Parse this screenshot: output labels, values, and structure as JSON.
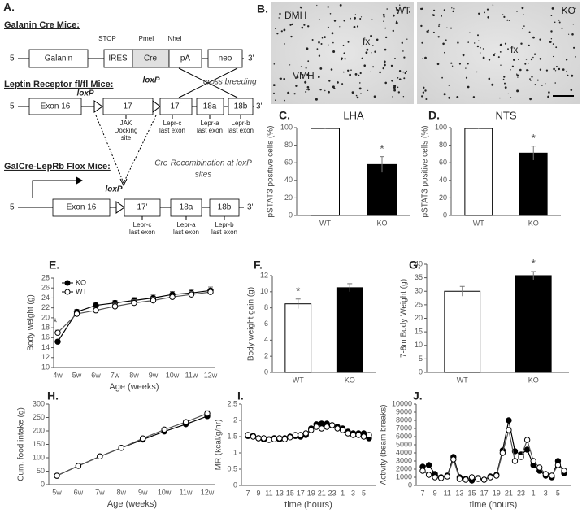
{
  "diagram": {
    "label": "A.",
    "galanin_cre": {
      "title": "Galanin Cre Mice:",
      "markers": [
        "STOP",
        "PmeI",
        "NheI"
      ],
      "ends": [
        "5'",
        "3'"
      ],
      "segments": [
        "Galanin",
        "IRES",
        "Cre",
        "pA",
        "neo"
      ]
    },
    "cross_breeding": "cross breeding",
    "lepr_flox": {
      "title": "Leptin Receptor fl/fl Mice:",
      "loxp": [
        "loxP",
        "loxP"
      ],
      "ends": [
        "5'",
        "3'"
      ],
      "exons": [
        "Exon 16",
        "17",
        "17'",
        "18a",
        "18b"
      ],
      "notes": [
        [
          "JAK",
          "Docking",
          "site"
        ],
        [
          "Lepr-c",
          "last exon"
        ],
        [
          "Lepr-a",
          "last exon"
        ],
        [
          "Lepr-b",
          "last exon"
        ]
      ]
    },
    "recombination": [
      "Cre-Recombination at loxP",
      "sites"
    ],
    "galcre_leprb": {
      "title": "GalCre-LepRb Flox Mice:",
      "loxp": "loxP",
      "ends": [
        "5'",
        "3'"
      ],
      "exons": [
        "Exon 16",
        "17'",
        "18a",
        "18b"
      ],
      "notes": [
        [
          "Lepr-c",
          "last exon"
        ],
        [
          "Lepr-a",
          "last exon"
        ],
        [
          "Lepr-b",
          "last exon"
        ]
      ]
    }
  },
  "micrographs": {
    "label": "B.",
    "panels": [
      {
        "genotype": "WT",
        "regions": [
          "DMH",
          "fx",
          "VMH"
        ]
      },
      {
        "genotype": "KO",
        "regions": [
          "fx"
        ]
      }
    ]
  },
  "chart_data": [
    {
      "type": "bar",
      "panel": "C.",
      "title": "LHA",
      "ylabel": "pSTAT3 positive cells (%)",
      "categories": [
        "WT",
        "KO"
      ],
      "values": [
        99,
        58
      ],
      "errors": [
        0.5,
        9
      ],
      "colors": [
        "#ffffff",
        "#000000"
      ],
      "ylim": [
        0,
        100
      ],
      "yticks": [
        0,
        20,
        40,
        60,
        80,
        100
      ],
      "annotations": [
        {
          "text": "*",
          "category": "KO"
        }
      ]
    },
    {
      "type": "bar",
      "panel": "D.",
      "title": "NTS",
      "ylabel": "pSTAT3 positive cells (%)",
      "categories": [
        "WT",
        "KO"
      ],
      "values": [
        99,
        71
      ],
      "errors": [
        0.5,
        8
      ],
      "colors": [
        "#ffffff",
        "#000000"
      ],
      "ylim": [
        0,
        100
      ],
      "yticks": [
        0,
        20,
        40,
        60,
        80,
        100
      ],
      "annotations": [
        {
          "text": "*",
          "category": "KO"
        }
      ]
    },
    {
      "type": "line",
      "panel": "E.",
      "xlabel": "Age (weeks)",
      "ylabel": "Body weight (g)",
      "categories": [
        "4w",
        "5w",
        "6w",
        "7w",
        "8w",
        "9w",
        "10w",
        "11w",
        "12w"
      ],
      "series": [
        {
          "name": "KO",
          "color": "#000000",
          "values": [
            15.2,
            21.2,
            22.5,
            23,
            23.5,
            24,
            24.7,
            25,
            25.5
          ],
          "errors": [
            0.4,
            0.5,
            0.5,
            0.5,
            0.6,
            0.6,
            0.6,
            0.6,
            0.7
          ]
        },
        {
          "name": "WT",
          "color": "#ffffff",
          "values": [
            17,
            20.8,
            21.5,
            22.3,
            23,
            23.5,
            24.2,
            24.7,
            25.2
          ],
          "errors": [
            0.5,
            0.5,
            0.5,
            0.6,
            0.6,
            0.6,
            0.6,
            0.6,
            0.6
          ]
        }
      ],
      "ylim": [
        10,
        28
      ],
      "yticks": [
        10,
        12,
        14,
        16,
        18,
        20,
        22,
        24,
        26,
        28
      ],
      "legend": "upper left",
      "annotations": [
        {
          "text": "*",
          "category": "4w"
        }
      ]
    },
    {
      "type": "bar",
      "panel": "F.",
      "ylabel": "Body weight gain (g)",
      "categories": [
        "WT",
        "KO"
      ],
      "values": [
        8.5,
        10.5
      ],
      "errors": [
        0.6,
        0.5
      ],
      "colors": [
        "#ffffff",
        "#000000"
      ],
      "ylim": [
        0,
        12
      ],
      "yticks": [
        0,
        2,
        4,
        6,
        8,
        10,
        12
      ],
      "annotations": [
        {
          "text": "*",
          "category": "WT"
        }
      ]
    },
    {
      "type": "bar",
      "panel": "G.",
      "ylabel": "7-8m Body Weight (g)",
      "categories": [
        "WT",
        "KO"
      ],
      "values": [
        30,
        35.8
      ],
      "errors": [
        1.8,
        1.5
      ],
      "colors": [
        "#ffffff",
        "#000000"
      ],
      "ylim": [
        0,
        40
      ],
      "yticks": [
        0,
        5,
        10,
        15,
        20,
        25,
        30,
        35,
        40
      ],
      "annotations": [
        {
          "text": "*",
          "category": "KO"
        }
      ]
    },
    {
      "type": "line",
      "panel": "H.",
      "xlabel": "Age (weeks)",
      "ylabel": "Cum. food intake (g)",
      "categories": [
        "5w",
        "6w",
        "7w",
        "8w",
        "9w",
        "10w",
        "11w",
        "12w"
      ],
      "series": [
        {
          "name": "KO",
          "color": "#000000",
          "values": [
            33,
            70,
            105,
            137,
            168,
            198,
            225,
            255
          ],
          "errors": [
            2,
            3,
            3,
            4,
            5,
            6,
            7,
            8
          ]
        },
        {
          "name": "WT",
          "color": "#ffffff",
          "values": [
            33,
            70,
            105,
            137,
            172,
            205,
            233,
            265
          ],
          "errors": [
            2,
            3,
            3,
            4,
            5,
            6,
            8,
            10
          ]
        }
      ],
      "ylim": [
        0,
        300
      ],
      "yticks": [
        0,
        50,
        100,
        150,
        200,
        250,
        300
      ]
    },
    {
      "type": "line",
      "panel": "I.",
      "xlabel": "time (hours)",
      "ylabel": "MR (kcal/g/hr)",
      "categories": [
        "7",
        null,
        "9",
        null,
        "11",
        null,
        "13",
        null,
        "15",
        null,
        "17",
        null,
        "19",
        null,
        "21",
        null,
        "23",
        null,
        "1",
        null,
        "3",
        null,
        "5",
        null
      ],
      "series": [
        {
          "name": "KO",
          "color": "#000000",
          "values": [
            1.52,
            1.52,
            1.45,
            1.42,
            1.42,
            1.45,
            1.42,
            1.45,
            1.5,
            1.52,
            1.5,
            1.55,
            1.75,
            1.88,
            1.9,
            1.9,
            1.85,
            1.8,
            1.75,
            1.65,
            1.6,
            1.6,
            1.6,
            1.45
          ]
        },
        {
          "name": "WT",
          "color": "#ffffff",
          "values": [
            1.55,
            1.5,
            1.45,
            1.45,
            1.4,
            1.42,
            1.45,
            1.42,
            1.48,
            1.55,
            1.55,
            1.6,
            1.7,
            1.8,
            1.75,
            1.8,
            1.85,
            1.75,
            1.7,
            1.6,
            1.55,
            1.55,
            1.5,
            1.55
          ]
        }
      ],
      "ylim": [
        0,
        2.5
      ],
      "yticks": [
        0,
        0.5,
        1,
        1.5,
        2,
        2.5
      ]
    },
    {
      "type": "line",
      "panel": "J.",
      "xlabel": "time (hours)",
      "ylabel": "Activity (beam breaks)",
      "categories": [
        "7",
        null,
        "9",
        null,
        "11",
        null,
        "13",
        null,
        "15",
        null,
        "17",
        null,
        "19",
        null,
        "21",
        null,
        "23",
        null,
        "1",
        null,
        "3",
        null,
        "5",
        null
      ],
      "series": [
        {
          "name": "KO",
          "color": "#000000",
          "values": [
            2300,
            2500,
            1400,
            1000,
            1200,
            3500,
            1000,
            800,
            600,
            900,
            700,
            1100,
            1300,
            4300,
            8000,
            4200,
            3800,
            4400,
            2500,
            1800,
            1200,
            1000,
            3000,
            1500
          ]
        },
        {
          "name": "WT",
          "color": "#ffffff",
          "values": [
            1800,
            1300,
            1000,
            900,
            1100,
            3200,
            800,
            700,
            1000,
            800,
            700,
            1000,
            1200,
            4000,
            6800,
            3000,
            3500,
            5600,
            3000,
            2200,
            1400,
            1200,
            2500,
            1800
          ]
        }
      ],
      "ylim": [
        0,
        10000
      ],
      "yticks": [
        0,
        1000,
        2000,
        3000,
        4000,
        5000,
        6000,
        7000,
        8000,
        9000,
        10000
      ]
    }
  ]
}
